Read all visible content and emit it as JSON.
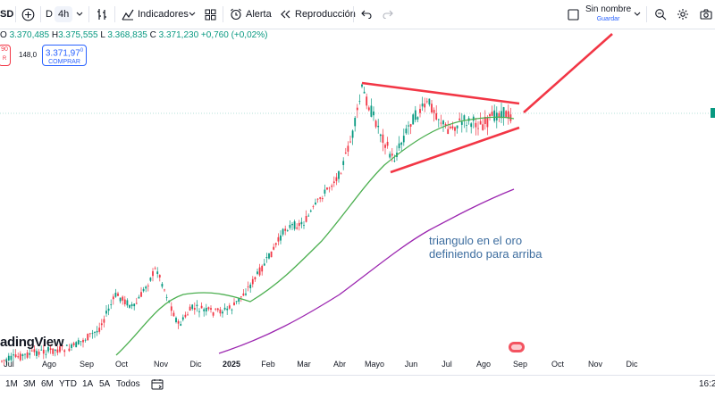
{
  "toolbar": {
    "symbol_fragment": "SD",
    "interval_d": "D",
    "interval_4h": "4h",
    "indicators_label": "Indicadores",
    "alert_label": "Alerta",
    "replay_label": "Reproducción",
    "layout_name": "Sin nombre",
    "layout_save": "Guardar"
  },
  "legend": {
    "open_label": "O",
    "open": "3.370,485",
    "high_label": "H",
    "high": "3.375,555",
    "low_label": "L",
    "low": "3.368,835",
    "close_label": "C",
    "close": "3.371,230",
    "change": "+0,760 (+0,02%)"
  },
  "trade": {
    "sell_price_fragment": "90",
    "sell_label_fragment": "R",
    "spread": "148,0",
    "buy_price": "3.371,97",
    "buy_price_sup": "0",
    "buy_label": "COMPRAR"
  },
  "watermark": "adingView",
  "annotation": {
    "line1": "triangulo en el oro",
    "line2": "definiendo para arriba"
  },
  "xaxis": {
    "ticks": [
      "Jul",
      "Ago",
      "Sep",
      "Oct",
      "Nov",
      "Dic",
      "2025",
      "Feb",
      "Mar",
      "Abr",
      "Mayo",
      "Jun",
      "Jul",
      "Ago",
      "Sep",
      "Oct",
      "Nov",
      "Dic"
    ]
  },
  "bottombar": {
    "ranges": [
      "1M",
      "3M",
      "6M",
      "YTD",
      "1A",
      "5A",
      "Todos"
    ],
    "time": "16:2"
  },
  "colors": {
    "up": "#089981",
    "down": "#f23645",
    "ma_green": "#4caf50",
    "ma_purple": "#9c27b0",
    "drawing_red": "#f23645",
    "annotation": "#3d6d9f"
  },
  "icons": [
    "plus-circle-icon",
    "chevron-down-icon",
    "bar-style-icon",
    "indicators-icon",
    "layout-grid-icon",
    "alarm-clock-icon",
    "replay-icon",
    "undo-icon",
    "redo-icon",
    "square-icon",
    "zoom-icon",
    "gear-icon",
    "camera-icon",
    "calendar-range-icon"
  ]
}
